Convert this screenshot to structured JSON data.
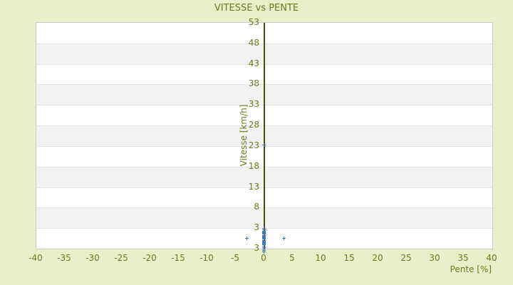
{
  "title": "VITESSE vs PENTE",
  "colors": {
    "background": "#e9eecb",
    "text_olive": "#6d7a1e",
    "axis_line": "#434e10",
    "band_white": "#ffffff",
    "band_gray": "#f2f2f2",
    "band_separator": "#e4e4e6",
    "plot_border": "#cbcbcb",
    "marker_blue": "#3c78b4"
  },
  "chart_data": {
    "type": "scatter",
    "title": "VITESSE vs PENTE",
    "xlabel": "Pente [%]",
    "ylabel": "Vitesse [km/h]",
    "xlim": [
      -40,
      40
    ],
    "ylim": [
      -2,
      53
    ],
    "x_ticks": [
      -40,
      -35,
      -30,
      -25,
      -20,
      -15,
      -10,
      -5,
      0,
      5,
      10,
      15,
      20,
      25,
      30,
      35,
      40
    ],
    "y_ticks": [
      53,
      48,
      43,
      38,
      33,
      28,
      23,
      18,
      13,
      8,
      3
    ],
    "y_axis_bottom_label": "3",
    "grid": "horizontal-bands",
    "legend": "none",
    "marker": "plus",
    "series": [
      {
        "name": "vitesse-vs-pente",
        "points": [
          [
            0,
            23
          ],
          [
            -2.9,
            0.4
          ],
          [
            3.5,
            0.4
          ],
          [
            0,
            2.8
          ],
          [
            0,
            2.4
          ],
          [
            0,
            2.1
          ],
          [
            0,
            1.9
          ],
          [
            0,
            1.7
          ],
          [
            0,
            1.5
          ],
          [
            0,
            1.3
          ],
          [
            0,
            1.1
          ],
          [
            0,
            0.9
          ],
          [
            0,
            0.7
          ],
          [
            0,
            0.5
          ],
          [
            0,
            0.3
          ],
          [
            0,
            0.1
          ],
          [
            0,
            -0.1
          ],
          [
            0,
            -0.3
          ],
          [
            0,
            -0.5
          ],
          [
            0,
            -0.7
          ],
          [
            0,
            -0.9
          ],
          [
            0,
            -1.1
          ],
          [
            0,
            -1.3
          ],
          [
            0,
            -1.5
          ],
          [
            0,
            -1.9
          ],
          [
            0,
            -2.2
          ],
          [
            0,
            -2.6
          ],
          [
            0,
            -3.0
          ]
        ]
      }
    ]
  }
}
